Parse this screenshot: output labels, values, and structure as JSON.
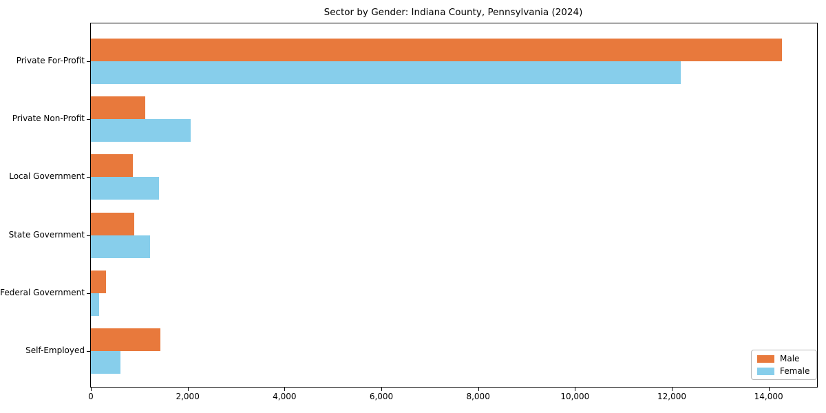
{
  "title": "Sector by Gender: Indiana County, Pennsylvania (2024)",
  "chart_data": {
    "type": "bar",
    "orientation": "horizontal",
    "title": "Sector by Gender: Indiana County, Pennsylvania (2024)",
    "categories": [
      "Private For-Profit",
      "Private Non-Profit",
      "Local Government",
      "State Government",
      "Federal Government",
      "Self-Employed"
    ],
    "series": [
      {
        "name": "Male",
        "color": "#e8793c",
        "values": [
          14270,
          1120,
          870,
          900,
          310,
          1440
        ]
      },
      {
        "name": "Female",
        "color": "#87ceeb",
        "values": [
          12180,
          2060,
          1410,
          1220,
          170,
          610
        ]
      }
    ],
    "xlabel": "",
    "ylabel": "",
    "xlim": [
      0,
      15000
    ],
    "x_ticks": [
      0,
      2000,
      4000,
      6000,
      8000,
      10000,
      12000,
      14000
    ],
    "x_tick_labels": [
      "0",
      "2,000",
      "4,000",
      "6,000",
      "8,000",
      "10,000",
      "12,000",
      "14,000"
    ],
    "grid": false,
    "legend_position": "lower right"
  }
}
